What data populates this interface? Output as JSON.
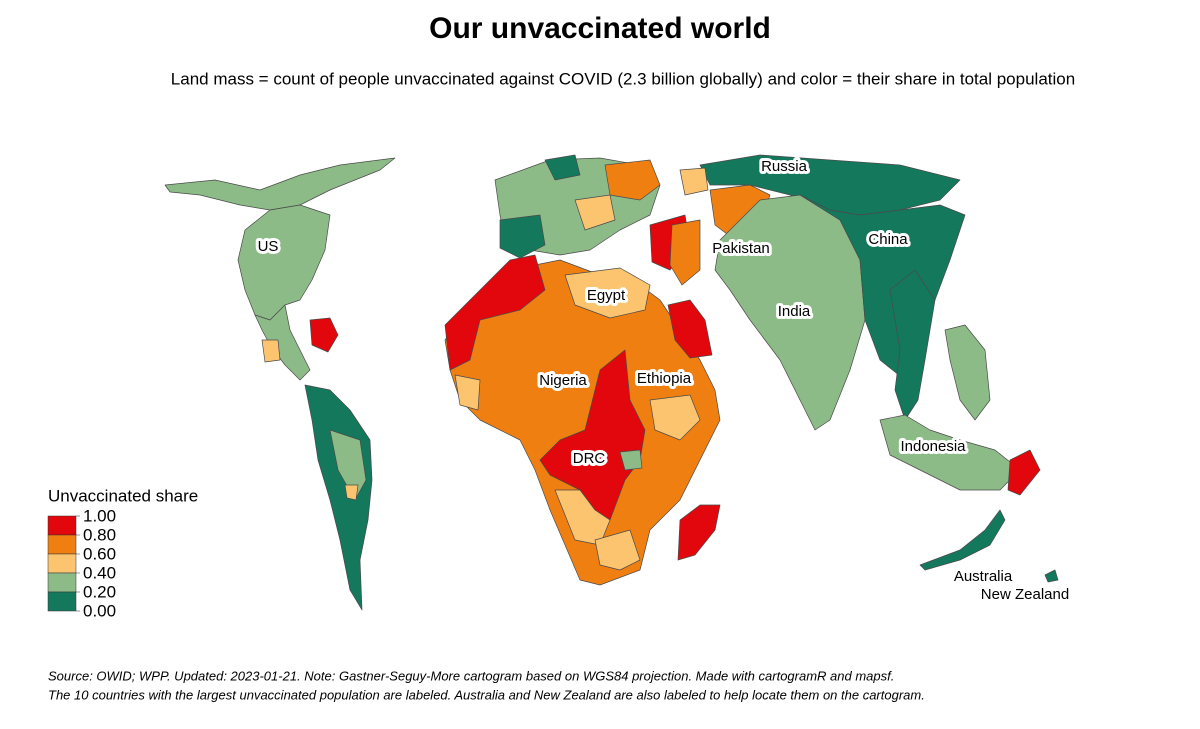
{
  "title": "Our unvaccinated world",
  "subtitle": "Land mass = count of people unvaccinated against COVID (2.3 billion globally) and color = their share in total population",
  "map": {
    "labels": [
      "Russia",
      "US",
      "China",
      "Pakistan",
      "Egypt",
      "India",
      "Nigeria",
      "Ethiopia",
      "DRC",
      "Indonesia",
      "Australia",
      "New Zealand"
    ]
  },
  "legend": {
    "title": "Unvaccinated share",
    "colors": [
      "#e1070c",
      "#f07f12",
      "#fcc46f",
      "#8cbb87",
      "#14785c"
    ],
    "ticks": [
      {
        "value": 1,
        "label": "1.00"
      },
      {
        "value": 0.8,
        "label": "0.80"
      },
      {
        "value": 0.6,
        "label": "0.60"
      },
      {
        "value": 0.4,
        "label": "0.40"
      },
      {
        "value": 0.2,
        "label": "0.20"
      },
      {
        "value": 0,
        "label": "0.00"
      }
    ]
  },
  "notes": [
    "Source: OWID; WPP. Updated: 2023-01-21. Note: Gastner-Seguy-More cartogram based on WGS84 projection. Made with cartogramR and mapsf.",
    "The 10 countries with the largest unvaccinated population are labeled. Australia and New Zealand are also labeled to help locate them on the cartogram."
  ]
}
